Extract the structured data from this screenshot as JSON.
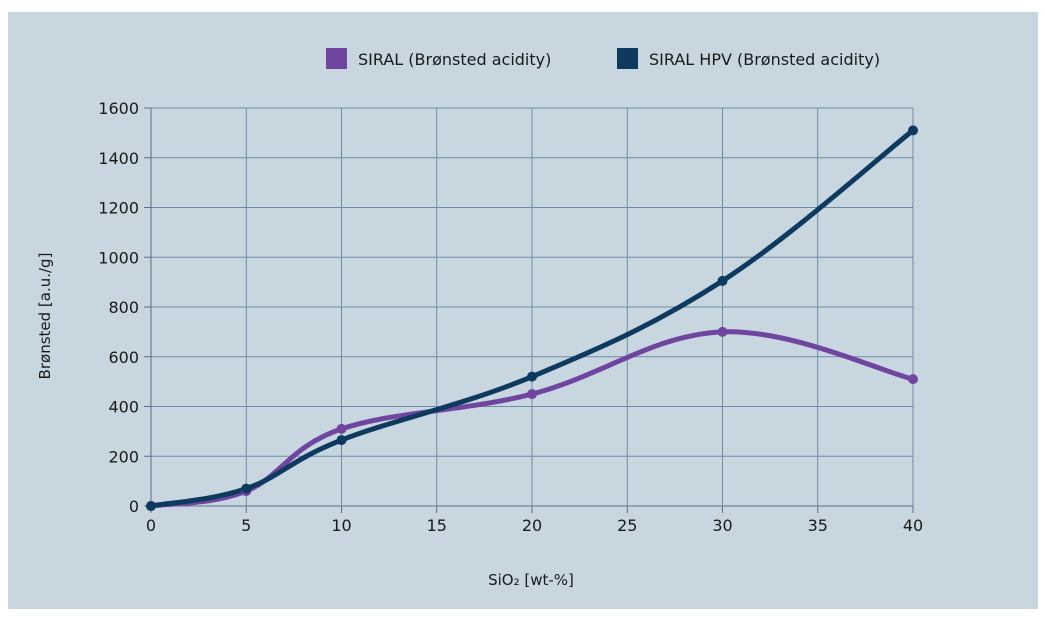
{
  "chart_data": {
    "type": "line",
    "xlabel": "SiO₂ [wt-%]",
    "ylabel": "Brønsted [a.u./g]",
    "xlim": [
      0,
      40
    ],
    "ylim": [
      0,
      1600
    ],
    "x_ticks": [
      "0",
      "5",
      "10",
      "15",
      "20",
      "25",
      "30",
      "35",
      "40"
    ],
    "y_ticks": [
      "0",
      "200",
      "400",
      "600",
      "800",
      "1000",
      "1200",
      "1400",
      "1600"
    ],
    "grid": true,
    "legend_position": "top",
    "series": [
      {
        "name": "SIRAL (Brønsted acidity)",
        "color": "#6f45a0",
        "x": [
          0,
          5,
          10,
          20,
          30,
          40
        ],
        "y": [
          0,
          60,
          310,
          450,
          700,
          510
        ]
      },
      {
        "name": "SIRAL HPV (Brønsted acidity)",
        "color": "#0d3a5e",
        "x": [
          0,
          5,
          10,
          20,
          30,
          40
        ],
        "y": [
          0,
          70,
          265,
          520,
          905,
          1510
        ]
      }
    ]
  }
}
